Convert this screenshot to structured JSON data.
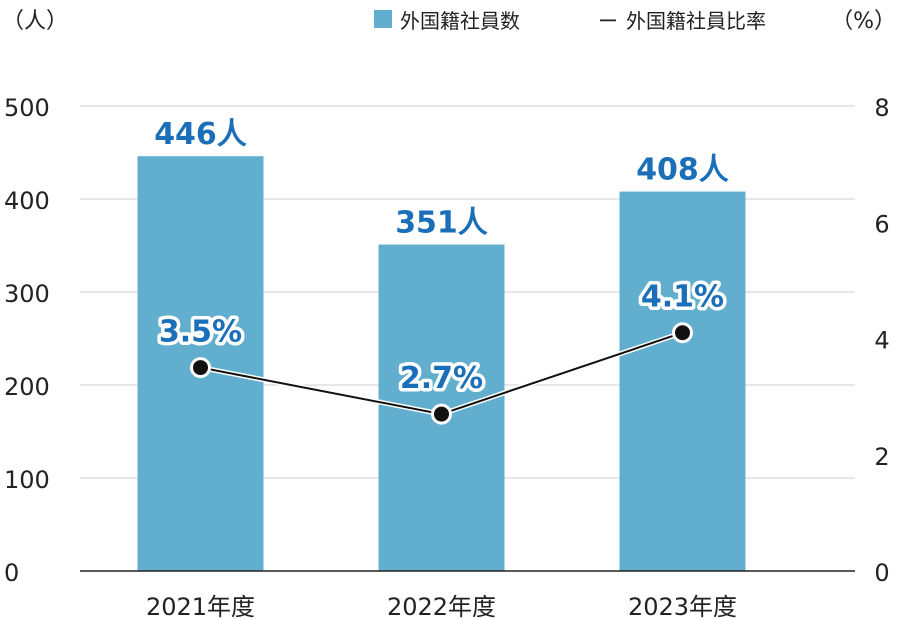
{
  "chart_data": {
    "type": "bar",
    "categories": [
      "2021年度",
      "2022年度",
      "2023年度"
    ],
    "series": [
      {
        "name": "外国籍社員数",
        "type": "bar",
        "axis": "left",
        "values": [
          446,
          351,
          408
        ],
        "labels": [
          "446人",
          "351人",
          "408人"
        ],
        "color": "#62aecf",
        "label_color": "#1a6fb8"
      },
      {
        "name": "外国籍社員比率",
        "type": "line",
        "axis": "right",
        "values": [
          3.5,
          2.7,
          4.1
        ],
        "labels": [
          "3.5%",
          "2.7%",
          "4.1%"
        ],
        "color": "#111111",
        "label_color": "#1a6fb8"
      }
    ],
    "y_left": {
      "unit_label": "（人）",
      "ylim": [
        0,
        500
      ],
      "ticks": [
        "0",
        "100",
        "200",
        "300",
        "400",
        "500"
      ]
    },
    "y_right": {
      "unit_label": "（%）",
      "ylim": [
        0,
        8
      ],
      "ticks": [
        "0",
        "2",
        "4",
        "6",
        "8"
      ]
    },
    "legend": {
      "position": "top-right",
      "bar_label": "外国籍社員数",
      "line_label": "外国籍社員比率",
      "line_symbol": "ー"
    },
    "grid": true
  }
}
